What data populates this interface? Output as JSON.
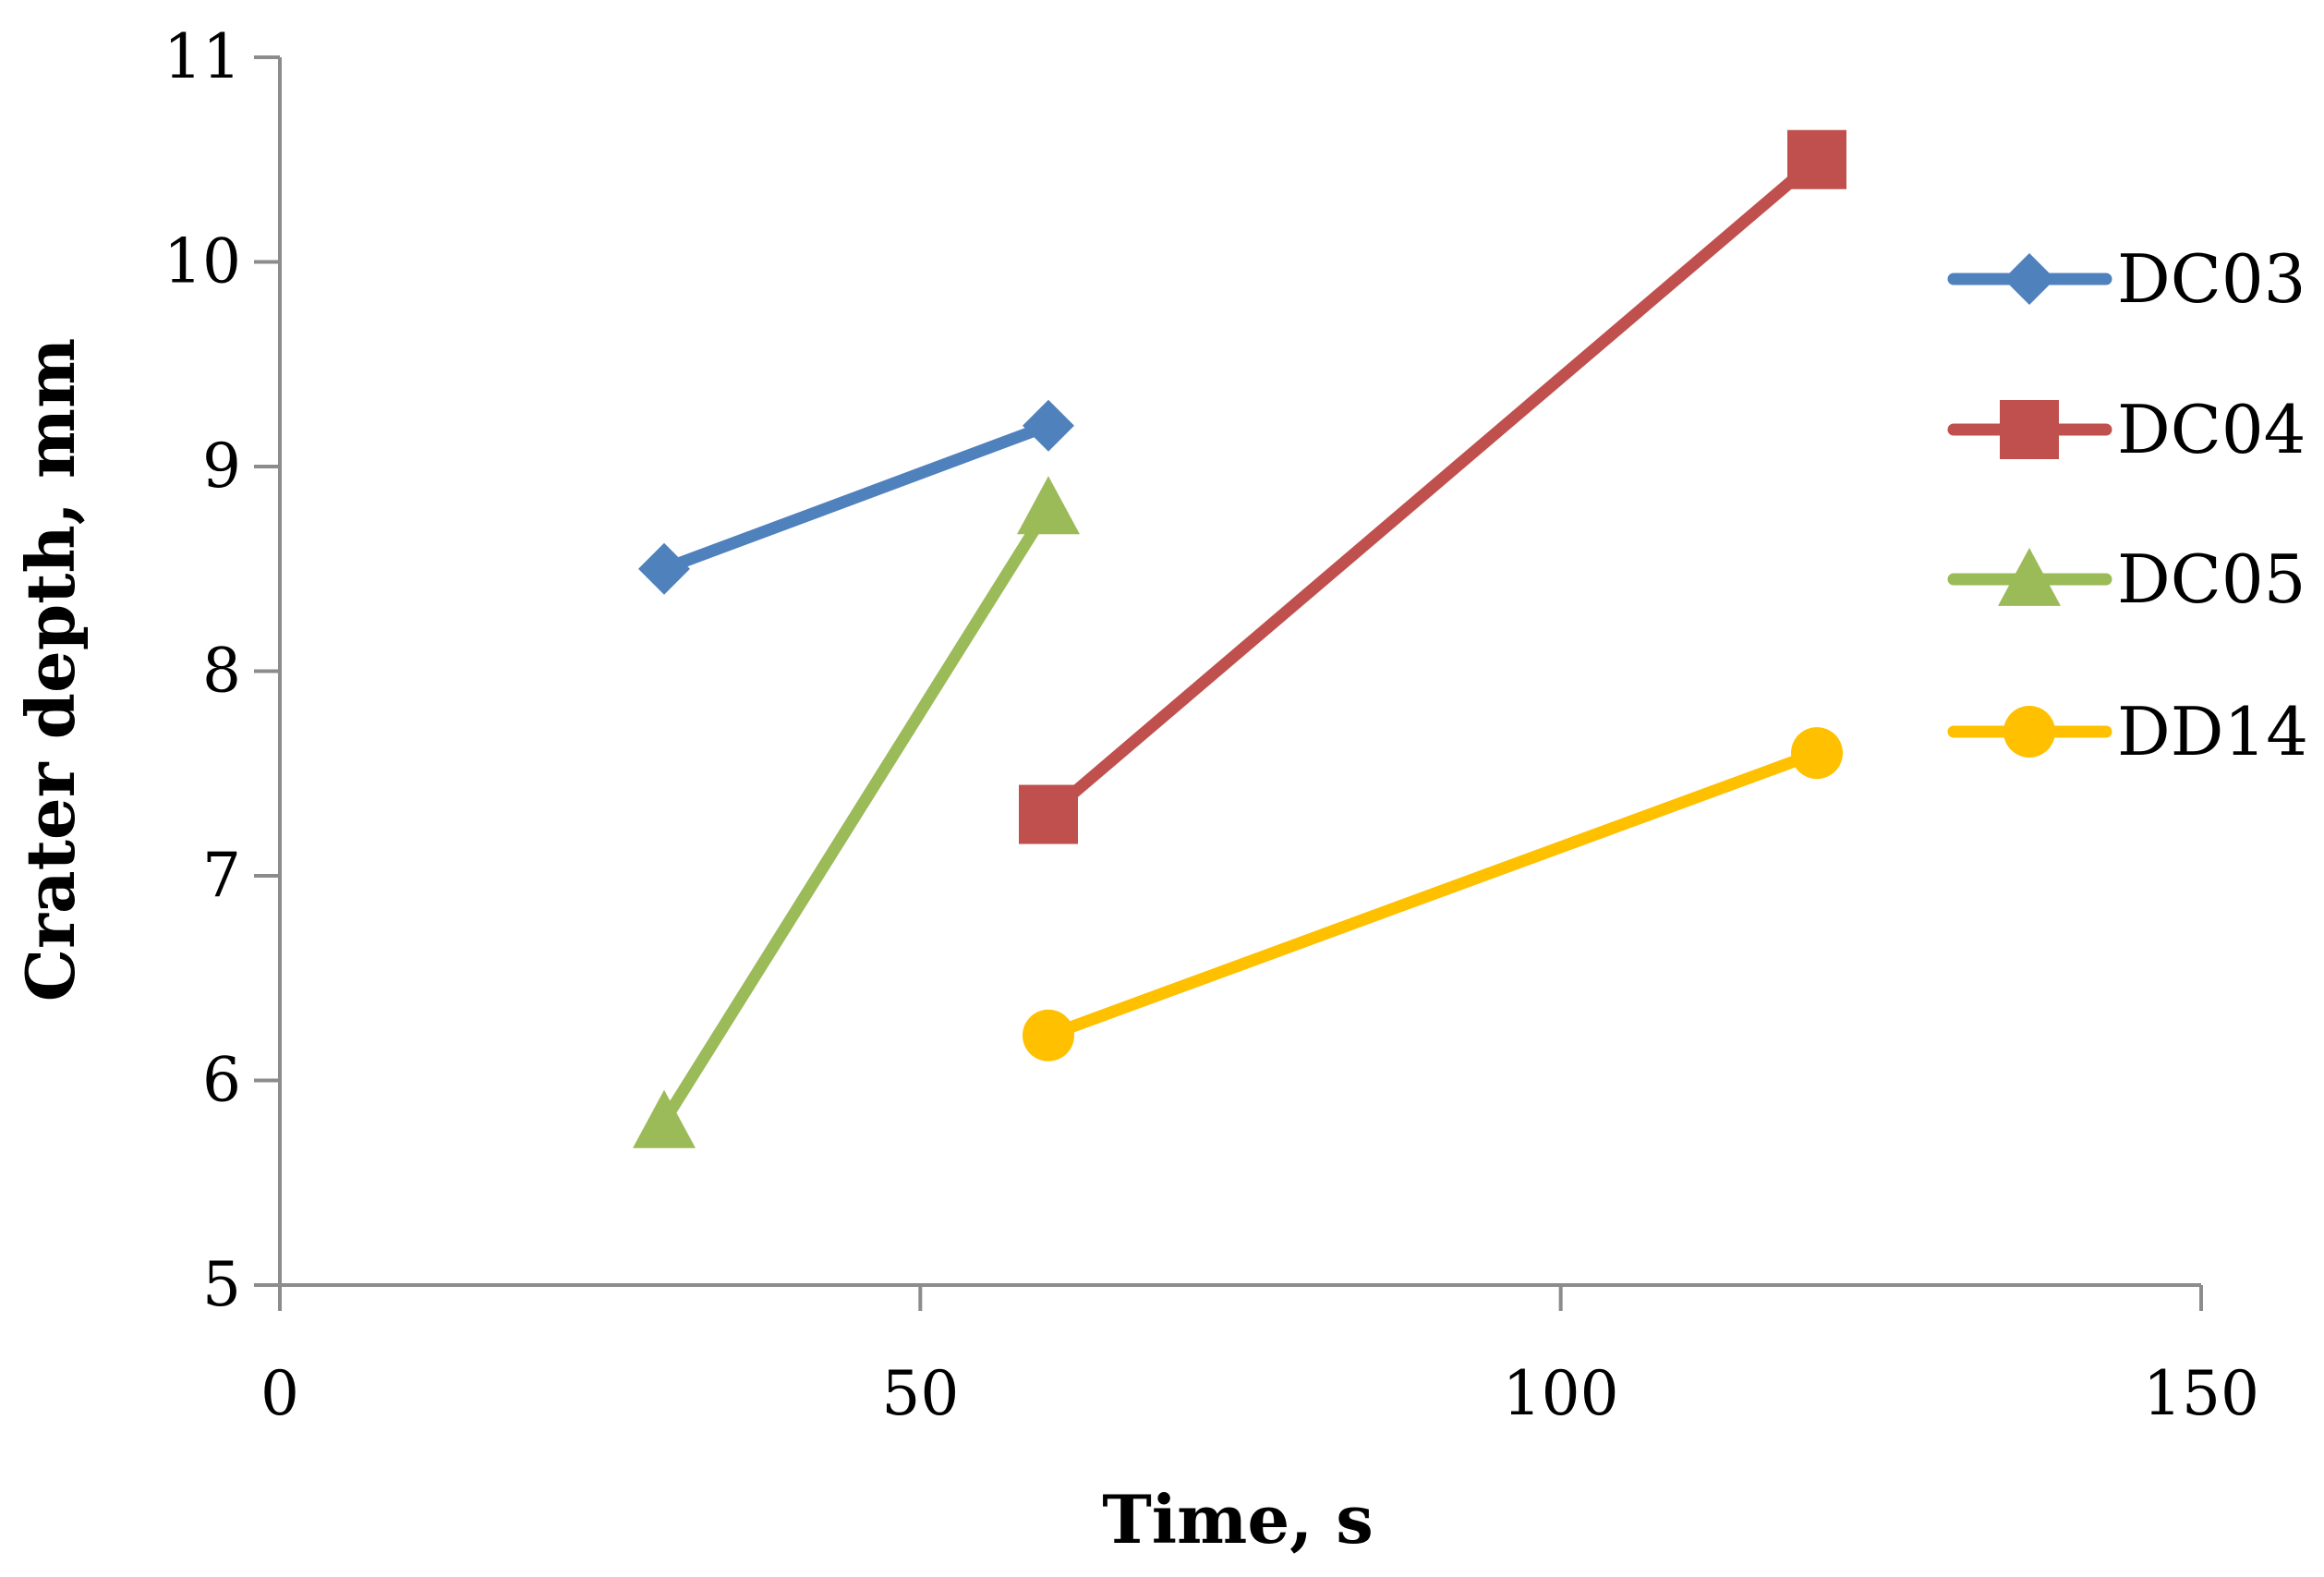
{
  "chart_data": {
    "type": "line",
    "xlabel": "Time, s",
    "ylabel": "Crater depth, mm",
    "xlim": [
      0,
      150
    ],
    "ylim": [
      5,
      11
    ],
    "xticks": [
      0,
      50,
      100,
      150
    ],
    "yticks": [
      5,
      6,
      7,
      8,
      9,
      10,
      11
    ],
    "grid": false,
    "legend_position": "right",
    "series": [
      {
        "name": "DC03",
        "color": "#4F81BD",
        "marker": "diamond",
        "x": [
          30,
          60
        ],
        "y": [
          8.5,
          9.2
        ]
      },
      {
        "name": "DC04",
        "color": "#C0504D",
        "marker": "square",
        "x": [
          60,
          120
        ],
        "y": [
          7.3,
          10.5
        ]
      },
      {
        "name": "DC05",
        "color": "#9BBB59",
        "marker": "triangle",
        "x": [
          30,
          60
        ],
        "y": [
          5.8,
          8.8
        ]
      },
      {
        "name": "DD14",
        "color": "#FFC000",
        "marker": "circle",
        "x": [
          60,
          120
        ],
        "y": [
          6.22,
          7.6
        ]
      }
    ]
  }
}
